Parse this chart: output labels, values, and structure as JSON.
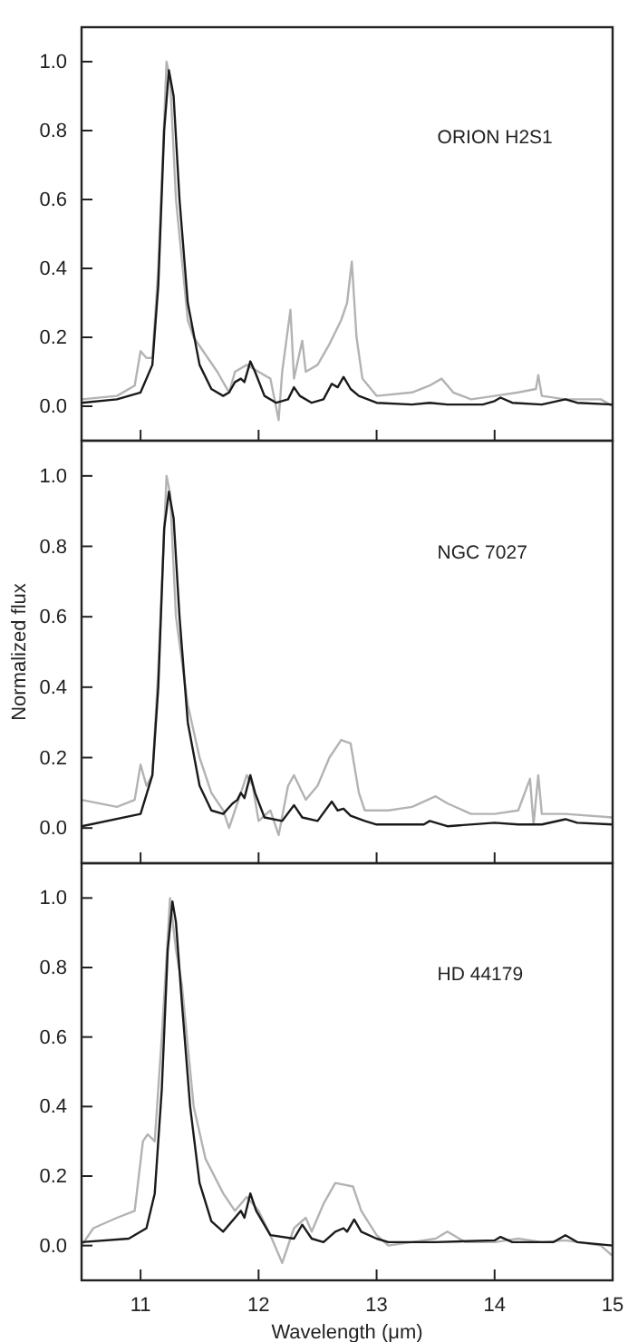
{
  "chart_data": [
    {
      "type": "line",
      "annotations": [
        "ORION H2S1"
      ],
      "xlim": [
        10.5,
        15
      ],
      "ylim": [
        -0.1,
        1.1
      ],
      "xticks": [
        11,
        12,
        13,
        14,
        15
      ],
      "yticks": [
        {
          "value": 0,
          "label": "0.0"
        },
        {
          "value": 0.2,
          "label": "0.2"
        },
        {
          "value": 0.4,
          "label": "0.4"
        },
        {
          "value": 0.6,
          "label": "0.6"
        },
        {
          "value": 0.8,
          "label": "0.8"
        },
        {
          "value": 1,
          "label": "1.0"
        }
      ],
      "tick_labels": "y",
      "series": [
        {
          "color": "#b3b3b3",
          "x": [
            10.5,
            10.8,
            10.95,
            11.0,
            11.05,
            11.1,
            11.15,
            11.22,
            11.25,
            11.3,
            11.4,
            11.45,
            11.55,
            11.65,
            11.75,
            11.8,
            11.9,
            12.0,
            12.1,
            12.17,
            12.2,
            12.27,
            12.3,
            12.37,
            12.4,
            12.5,
            12.6,
            12.7,
            12.75,
            12.79,
            12.83,
            12.88,
            13.0,
            13.3,
            13.45,
            13.55,
            13.65,
            13.8,
            14.0,
            14.2,
            14.35,
            14.37,
            14.4,
            14.6,
            14.9,
            15
          ],
          "values": [
            0.02,
            0.03,
            0.06,
            0.16,
            0.14,
            0.14,
            0.4,
            1.0,
            0.95,
            0.6,
            0.25,
            0.2,
            0.15,
            0.1,
            0.04,
            0.1,
            0.12,
            0.1,
            0.08,
            -0.04,
            0.1,
            0.28,
            0.08,
            0.19,
            0.1,
            0.12,
            0.18,
            0.25,
            0.3,
            0.42,
            0.2,
            0.08,
            0.03,
            0.04,
            0.06,
            0.08,
            0.04,
            0.02,
            0.03,
            0.04,
            0.05,
            0.09,
            0.03,
            0.02,
            0.02,
            0.0
          ]
        },
        {
          "color": "#1a1a1a",
          "x": [
            10.5,
            10.8,
            11.0,
            11.1,
            11.15,
            11.2,
            11.24,
            11.28,
            11.33,
            11.4,
            11.5,
            11.6,
            11.7,
            11.75,
            11.8,
            11.85,
            11.88,
            11.93,
            11.97,
            12.05,
            12.15,
            12.25,
            12.3,
            12.35,
            12.45,
            12.55,
            12.62,
            12.67,
            12.72,
            12.78,
            12.85,
            13.0,
            13.3,
            13.45,
            13.6,
            13.9,
            14.0,
            14.05,
            14.15,
            14.4,
            14.6,
            14.7,
            15
          ],
          "values": [
            0.01,
            0.02,
            0.04,
            0.12,
            0.35,
            0.8,
            0.975,
            0.9,
            0.6,
            0.3,
            0.12,
            0.05,
            0.03,
            0.04,
            0.07,
            0.08,
            0.07,
            0.13,
            0.1,
            0.03,
            0.01,
            0.02,
            0.055,
            0.03,
            0.01,
            0.02,
            0.065,
            0.055,
            0.085,
            0.05,
            0.03,
            0.01,
            0.005,
            0.01,
            0.005,
            0.005,
            0.015,
            0.025,
            0.01,
            0.005,
            0.02,
            0.01,
            0.005
          ]
        }
      ]
    },
    {
      "type": "line",
      "annotations": [
        "NGC 7027"
      ],
      "ylabel": "Normalized flux",
      "xlim": [
        10.5,
        15
      ],
      "ylim": [
        -0.1,
        1.1
      ],
      "xticks": [
        11,
        12,
        13,
        14,
        15
      ],
      "yticks": [
        {
          "value": 0,
          "label": "0.0"
        },
        {
          "value": 0.2,
          "label": "0.2"
        },
        {
          "value": 0.4,
          "label": "0.4"
        },
        {
          "value": 0.6,
          "label": "0.6"
        },
        {
          "value": 0.8,
          "label": "0.8"
        },
        {
          "value": 1,
          "label": "1.0"
        }
      ],
      "tick_labels": "y",
      "series": [
        {
          "color": "#b3b3b3",
          "x": [
            10.5,
            10.8,
            10.95,
            11.0,
            11.05,
            11.1,
            11.15,
            11.22,
            11.25,
            11.3,
            11.4,
            11.5,
            11.6,
            11.7,
            11.75,
            11.8,
            11.9,
            11.95,
            12.0,
            12.1,
            12.17,
            12.25,
            12.3,
            12.4,
            12.5,
            12.6,
            12.7,
            12.78,
            12.85,
            12.9,
            13.1,
            13.3,
            13.5,
            13.6,
            13.8,
            14.0,
            14.2,
            14.3,
            14.33,
            14.37,
            14.4,
            14.6,
            15
          ],
          "values": [
            0.08,
            0.06,
            0.08,
            0.18,
            0.12,
            0.15,
            0.45,
            1.0,
            0.95,
            0.6,
            0.35,
            0.2,
            0.1,
            0.05,
            0.0,
            0.05,
            0.15,
            0.12,
            0.02,
            0.05,
            -0.02,
            0.12,
            0.15,
            0.08,
            0.12,
            0.2,
            0.25,
            0.24,
            0.1,
            0.05,
            0.05,
            0.06,
            0.09,
            0.07,
            0.04,
            0.04,
            0.05,
            0.14,
            0.01,
            0.15,
            0.04,
            0.04,
            0.03
          ]
        },
        {
          "color": "#1a1a1a",
          "x": [
            10.5,
            11.0,
            11.1,
            11.15,
            11.2,
            11.24,
            11.28,
            11.33,
            11.4,
            11.5,
            11.6,
            11.7,
            11.78,
            11.82,
            11.85,
            11.88,
            11.93,
            11.97,
            12.05,
            12.2,
            12.3,
            12.37,
            12.5,
            12.62,
            12.67,
            12.72,
            12.78,
            12.9,
            13.0,
            13.4,
            13.45,
            13.6,
            14.0,
            14.2,
            14.4,
            14.6,
            14.7,
            15
          ],
          "values": [
            0.005,
            0.04,
            0.15,
            0.4,
            0.85,
            0.955,
            0.88,
            0.6,
            0.3,
            0.12,
            0.05,
            0.04,
            0.07,
            0.08,
            0.1,
            0.085,
            0.15,
            0.1,
            0.03,
            0.02,
            0.065,
            0.03,
            0.02,
            0.075,
            0.05,
            0.055,
            0.035,
            0.02,
            0.01,
            0.01,
            0.02,
            0.005,
            0.015,
            0.01,
            0.01,
            0.025,
            0.015,
            0.01
          ]
        }
      ]
    },
    {
      "type": "line",
      "annotations": [
        "HD 44179"
      ],
      "xlabel": "Wavelength (μm)",
      "xlim": [
        10.5,
        15
      ],
      "ylim": [
        -0.1,
        1.1
      ],
      "xticks": [
        11,
        12,
        13,
        14,
        15
      ],
      "yticks": [
        {
          "value": 0,
          "label": "0.0"
        },
        {
          "value": 0.2,
          "label": "0.2"
        },
        {
          "value": 0.4,
          "label": "0.4"
        },
        {
          "value": 0.6,
          "label": "0.6"
        },
        {
          "value": 0.8,
          "label": "0.8"
        },
        {
          "value": 1,
          "label": "1.0"
        }
      ],
      "series": [
        {
          "color": "#b3b3b3",
          "x": [
            10.5,
            10.6,
            10.8,
            10.95,
            11.02,
            11.06,
            11.12,
            11.18,
            11.25,
            11.3,
            11.35,
            11.45,
            11.55,
            11.7,
            11.8,
            11.9,
            12.0,
            12.1,
            12.2,
            12.3,
            12.4,
            12.45,
            12.55,
            12.65,
            12.8,
            12.87,
            13.0,
            13.1,
            13.3,
            13.5,
            13.6,
            13.75,
            14.0,
            14.2,
            14.4,
            14.6,
            14.9,
            15
          ],
          "values": [
            0.0,
            0.05,
            0.08,
            0.1,
            0.3,
            0.32,
            0.3,
            0.6,
            1.0,
            0.85,
            0.75,
            0.4,
            0.25,
            0.15,
            0.1,
            0.14,
            0.1,
            0.03,
            -0.05,
            0.05,
            0.08,
            0.04,
            0.12,
            0.18,
            0.17,
            0.1,
            0.03,
            0.0,
            0.01,
            0.02,
            0.04,
            0.01,
            0.01,
            0.02,
            0.01,
            0.015,
            0.0,
            -0.03
          ]
        },
        {
          "color": "#1a1a1a",
          "x": [
            10.5,
            10.9,
            11.05,
            11.12,
            11.18,
            11.23,
            11.27,
            11.3,
            11.35,
            11.42,
            11.5,
            11.6,
            11.7,
            11.8,
            11.85,
            11.88,
            11.93,
            11.98,
            12.1,
            12.3,
            12.37,
            12.45,
            12.55,
            12.65,
            12.72,
            12.75,
            12.81,
            12.87,
            13.0,
            13.1,
            13.5,
            14.0,
            14.05,
            14.15,
            14.5,
            14.6,
            14.7,
            15
          ],
          "values": [
            0.01,
            0.02,
            0.05,
            0.15,
            0.45,
            0.85,
            0.99,
            0.93,
            0.7,
            0.4,
            0.18,
            0.07,
            0.04,
            0.08,
            0.1,
            0.08,
            0.15,
            0.1,
            0.03,
            0.02,
            0.06,
            0.02,
            0.01,
            0.04,
            0.05,
            0.04,
            0.075,
            0.04,
            0.02,
            0.01,
            0.01,
            0.015,
            0.025,
            0.01,
            0.01,
            0.03,
            0.01,
            0.0
          ]
        }
      ]
    }
  ]
}
